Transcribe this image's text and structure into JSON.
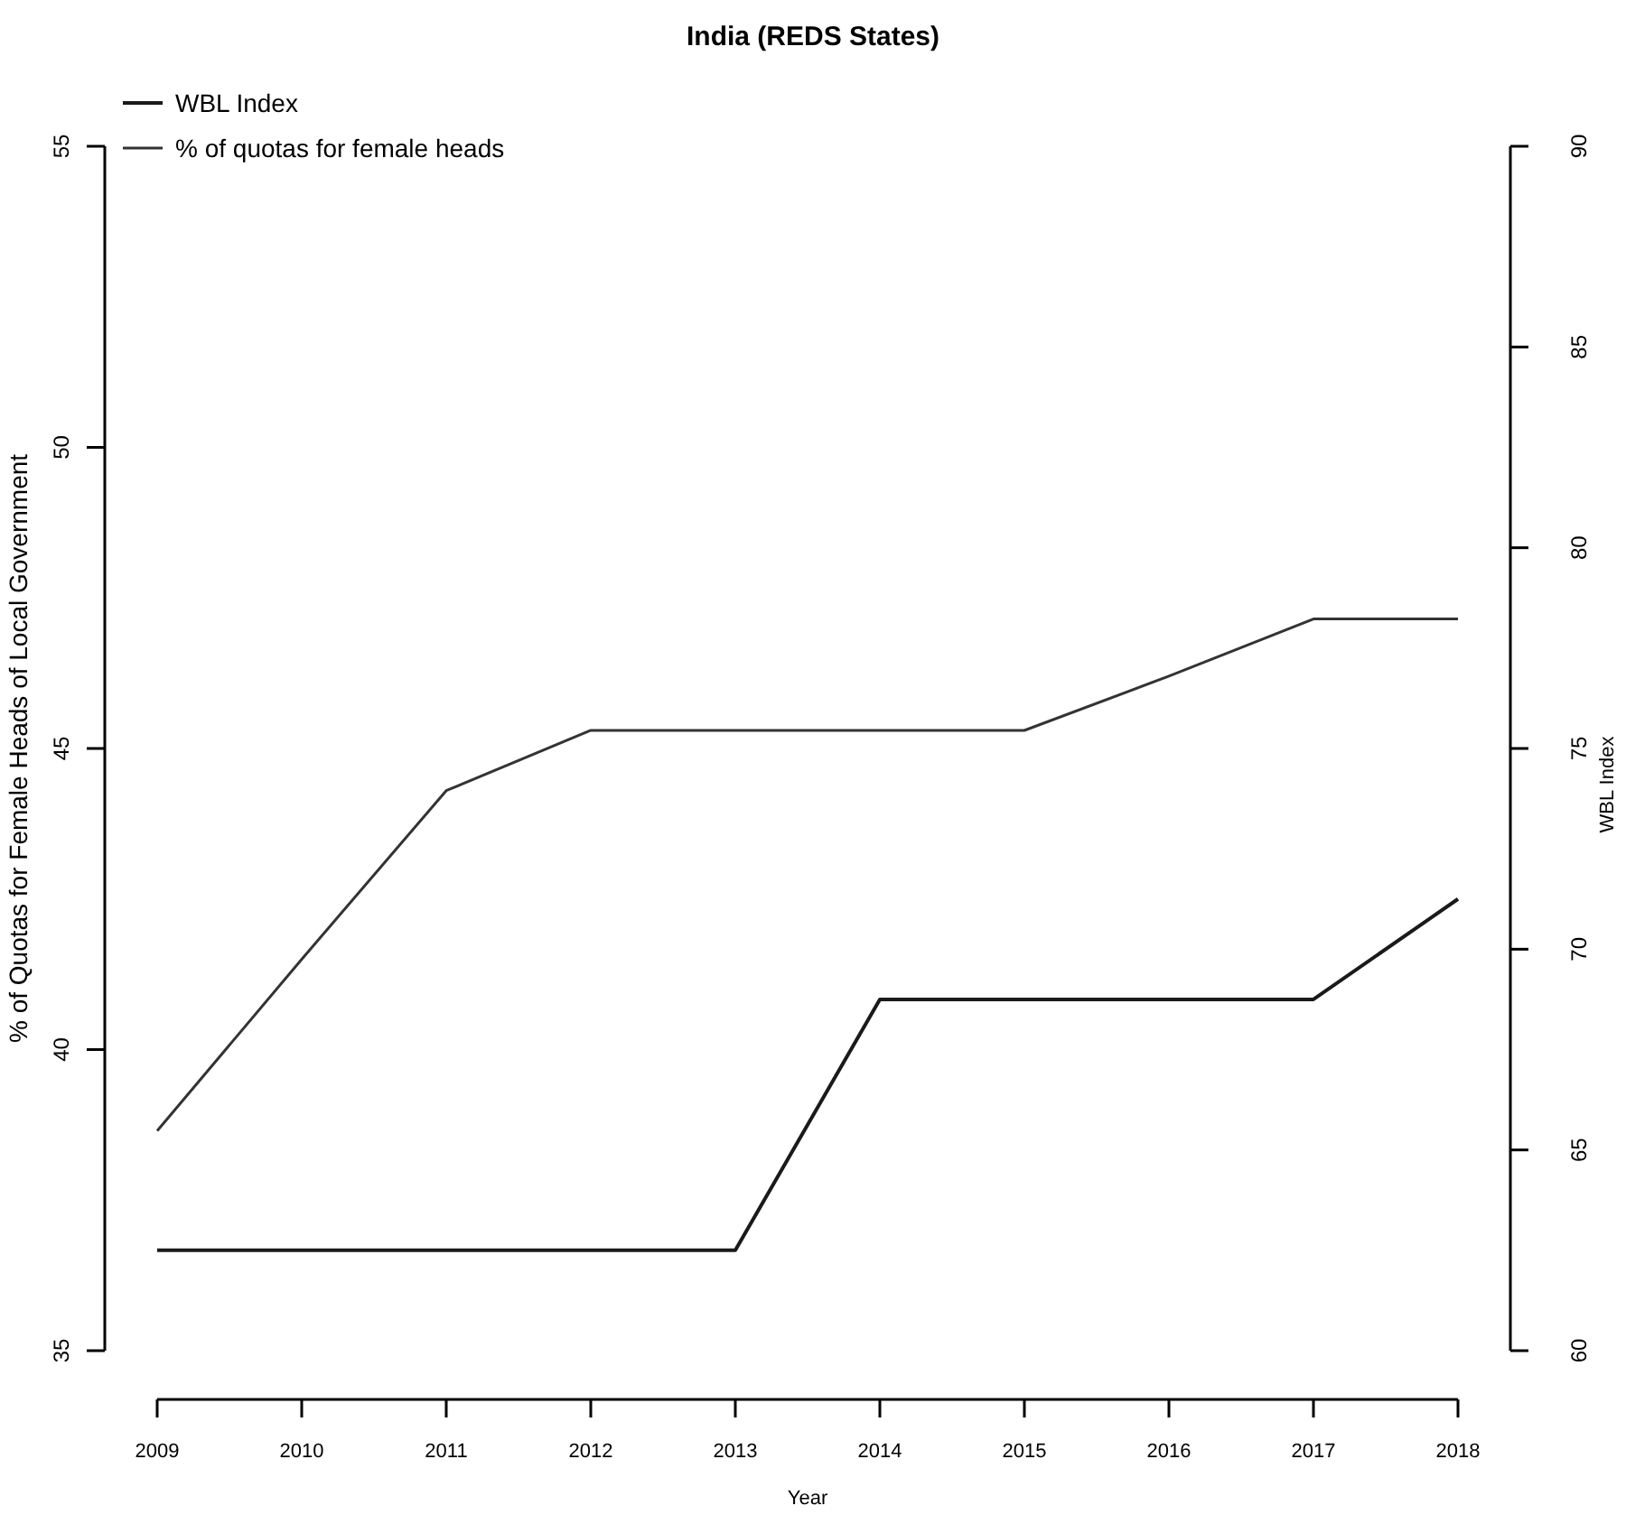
{
  "chart_data": {
    "type": "line",
    "title": "India (REDS States)",
    "xlabel": "Year",
    "ylabel": "% of Quotas for Female Heads of Local Government",
    "y2label": "WBL Index",
    "x": [
      2009,
      2010,
      2011,
      2012,
      2013,
      2014,
      2015,
      2016,
      2017,
      2018
    ],
    "series": [
      {
        "name": "WBL Index",
        "color": "#1a1a1a",
        "axis": "y2",
        "values": [
          62.5,
          62.5,
          62.5,
          62.5,
          62.5,
          68.75,
          68.75,
          68.75,
          68.75,
          71.25
        ]
      },
      {
        "name": "% of quotas for female heads",
        "color": "#333333",
        "values": [
          38.65,
          41.5,
          44.3,
          45.3,
          45.3,
          45.3,
          45.3,
          46.2,
          47.15,
          47.15
        ]
      }
    ],
    "xlim": [
      2009,
      2018
    ],
    "xticks": [
      2009,
      2010,
      2011,
      2012,
      2013,
      2014,
      2015,
      2016,
      2017,
      2018
    ],
    "ylim": [
      35,
      55
    ],
    "yticks": [
      35,
      40,
      45,
      50,
      55
    ],
    "y2lim": [
      60,
      90
    ],
    "y2ticks": [
      60,
      65,
      70,
      75,
      80,
      85,
      90
    ],
    "legend": "top left",
    "grid": false,
    "marker": "none",
    "line_style": "solid"
  }
}
